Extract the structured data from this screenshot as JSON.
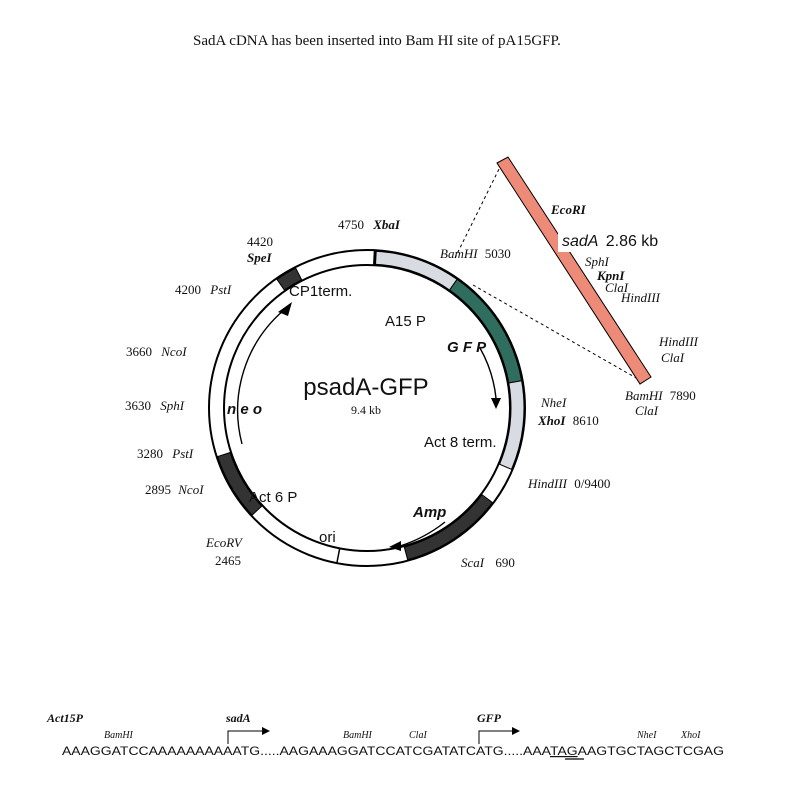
{
  "caption": "SadA cDNA has been inserted into Bam HI site of pA15GFP.",
  "plasmid": {
    "name": "psadA-GFP",
    "size": "9.4 kb",
    "regions": {
      "a15p": "A15 P",
      "gfp": "G F P",
      "act8term": "Act 8 term.",
      "amp": "Amp",
      "ori": "ori",
      "act6p": "Act 6 P",
      "neo": "n e o",
      "cp1term": "CP1term."
    },
    "sites": {
      "xba": {
        "pos": "4750",
        "enzyme": "XbaI"
      },
      "bamhi": {
        "enzyme": "BamHI",
        "pos": "5030"
      },
      "nhe": "NheI",
      "xho": {
        "enzyme": "XhoI",
        "pos": "8610"
      },
      "hind": {
        "enzyme": "HindIII",
        "pos": "0/9400"
      },
      "sca": {
        "enzyme": "ScaI",
        "pos": "690"
      },
      "ecorv": {
        "enzyme": "EcoRV",
        "pos": "2465"
      },
      "nco2895": {
        "pos": "2895",
        "enzyme": "NcoI"
      },
      "pst3280": {
        "pos": "3280",
        "enzyme": "PstI"
      },
      "sph3630": {
        "pos": "3630",
        "enzyme": "SphI"
      },
      "nco3660": {
        "pos": "3660",
        "enzyme": "NcoI"
      },
      "pst4200": {
        "pos": "4200",
        "enzyme": "PstI"
      },
      "spe": {
        "pos": "4420",
        "enzyme": "SpeI"
      }
    }
  },
  "insert": {
    "ecori": "EcoRI",
    "name": "sadA",
    "size": "2.86 kb",
    "sph": "SphI",
    "kpn": "KpnI",
    "cla1": "ClaI",
    "hind1": "HindIII",
    "hind2": "HindIII",
    "cla2": "ClaI",
    "bamhi": "BamHI",
    "bamhi_pos": "7890",
    "cla3": "ClaI"
  },
  "sequence": {
    "promoter": "Act15P",
    "sada_label": "sadA",
    "gfp_label": "GFP",
    "bamhi1": "BamHI",
    "bamhi2": "BamHI",
    "clai": "ClaI",
    "nhei": "NheI",
    "xhoi": "XhoI",
    "seq1": "AAAGGATCCAAAAAAAAAATG.....AAGAAAGGATCCATCGATATCATG.....AAA",
    "seq_stop": "TAG",
    "seq2": "AAGTGCTAGCTCGAG"
  },
  "colors": {
    "insert": "#ee8a78",
    "gfp": "#2f6d5e",
    "promoter": "#d8dbe2",
    "marker": "#333333"
  }
}
